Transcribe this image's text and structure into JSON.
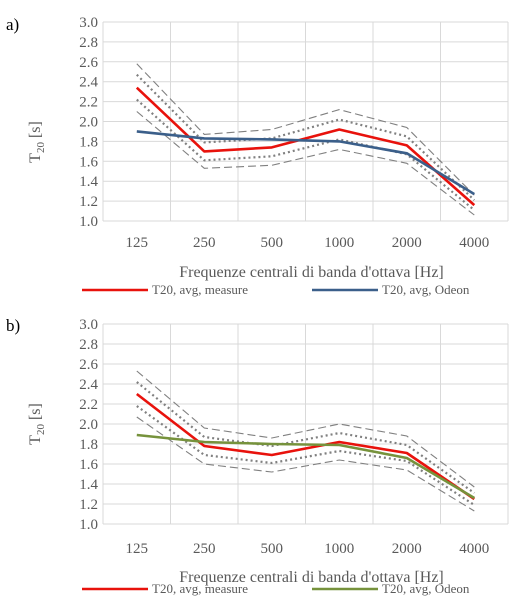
{
  "chart_data": [
    {
      "type": "line",
      "panel_label": "a)",
      "categories": [
        "125",
        "250",
        "500",
        "1000",
        "2000",
        "4000"
      ],
      "xlabel": "Frequenze centrali di banda d'ottava [Hz]",
      "ylabel": "T",
      "ylabel_sub": "20",
      "ylabel_unit": " [s]",
      "ylim": [
        1.0,
        3.0
      ],
      "yticks": [
        "3.0",
        "2.8",
        "2.6",
        "2.4",
        "2.2",
        "2.0",
        "1.8",
        "1.6",
        "1.4",
        "1.2",
        "1.0"
      ],
      "grid": true,
      "legend_position": "bottom",
      "series": [
        {
          "name": "T20, avg, measure",
          "color": "#e8120c",
          "style": "solid",
          "values": [
            2.34,
            1.7,
            1.74,
            1.92,
            1.76,
            1.16
          ]
        },
        {
          "name": "T20, avg, Odeon",
          "color": "#3b5f8a",
          "style": "solid",
          "values": [
            1.9,
            1.83,
            1.82,
            1.8,
            1.68,
            1.27
          ]
        }
      ],
      "bands": [
        {
          "color": "#808080",
          "style": "dot",
          "values": [
            2.47,
            1.79,
            1.83,
            2.02,
            1.85,
            1.21
          ]
        },
        {
          "color": "#808080",
          "style": "dot",
          "values": [
            2.22,
            1.61,
            1.65,
            1.82,
            1.67,
            1.11
          ]
        },
        {
          "color": "#808080",
          "style": "dash",
          "values": [
            2.58,
            1.87,
            1.92,
            2.12,
            1.94,
            1.26
          ]
        },
        {
          "color": "#808080",
          "style": "dash",
          "values": [
            2.1,
            1.53,
            1.56,
            1.72,
            1.58,
            1.06
          ]
        }
      ]
    },
    {
      "type": "line",
      "panel_label": "b)",
      "categories": [
        "125",
        "250",
        "500",
        "1000",
        "2000",
        "4000"
      ],
      "xlabel": "Frequenze centrali di banda d'ottava [Hz]",
      "ylabel": "T",
      "ylabel_sub": "20",
      "ylabel_unit": " [s]",
      "ylim": [
        1.0,
        3.0
      ],
      "yticks": [
        "3.0",
        "2.8",
        "2.6",
        "2.4",
        "2.2",
        "2.0",
        "1.8",
        "1.6",
        "1.4",
        "1.2",
        "1.0"
      ],
      "grid": true,
      "legend_position": "bottom",
      "series": [
        {
          "name": "T20, avg, measure",
          "color": "#e8120c",
          "style": "solid",
          "values": [
            2.3,
            1.78,
            1.69,
            1.82,
            1.71,
            1.25
          ]
        },
        {
          "name": "T20, avg, Odeon",
          "color": "#76923c",
          "style": "solid",
          "values": [
            1.89,
            1.82,
            1.8,
            1.79,
            1.66,
            1.26
          ]
        }
      ],
      "bands": [
        {
          "color": "#808080",
          "style": "dot",
          "values": [
            2.42,
            1.87,
            1.78,
            1.91,
            1.79,
            1.31
          ]
        },
        {
          "color": "#808080",
          "style": "dot",
          "values": [
            2.18,
            1.69,
            1.61,
            1.73,
            1.63,
            1.19
          ]
        },
        {
          "color": "#808080",
          "style": "dash",
          "values": [
            2.53,
            1.96,
            1.86,
            2.0,
            1.88,
            1.37
          ]
        },
        {
          "color": "#808080",
          "style": "dash",
          "values": [
            2.07,
            1.6,
            1.52,
            1.64,
            1.54,
            1.13
          ]
        }
      ]
    }
  ]
}
